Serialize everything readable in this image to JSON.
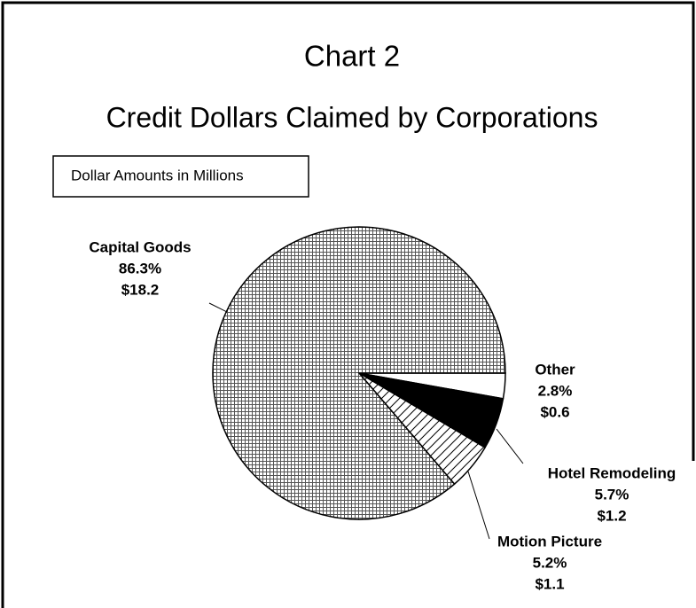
{
  "chart_data": {
    "type": "pie",
    "title": "Chart 2",
    "subtitle": "Credit Dollars Claimed by Corporations",
    "annotation": "Dollar Amounts in Millions",
    "categories": [
      "Other",
      "Hotel Remodeling",
      "Motion Picture",
      "Capital Goods"
    ],
    "values": [
      2.8,
      5.7,
      5.2,
      86.3
    ],
    "value_labels": [
      "2.8%",
      "5.7%",
      "5.2%",
      "86.3%"
    ],
    "amounts": [
      0.6,
      1.2,
      1.1,
      18.2
    ],
    "amount_labels": [
      "$0.6",
      "$1.2",
      "$1.1",
      "$18.2"
    ]
  }
}
